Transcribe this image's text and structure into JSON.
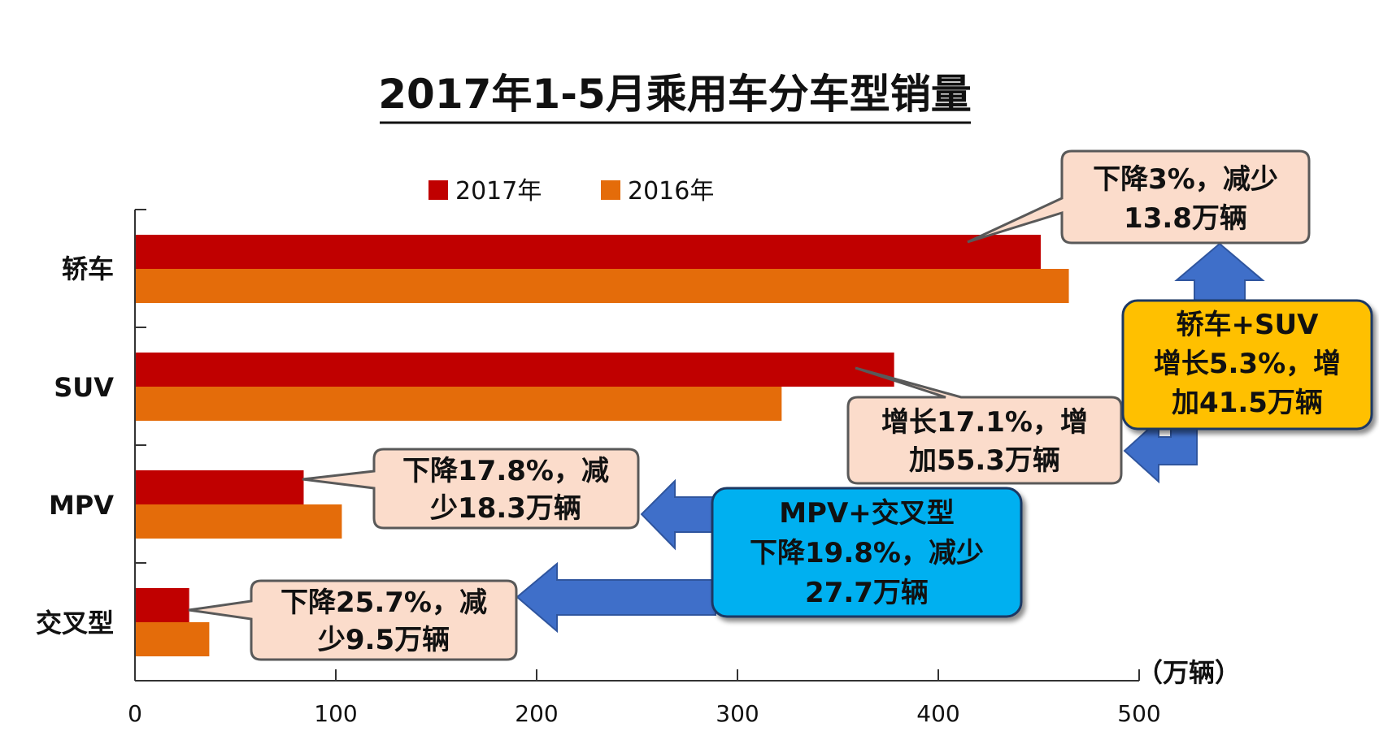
{
  "chart_data": {
    "type": "bar",
    "orientation": "horizontal",
    "title": "2017年1-5月乘用车分车型销量",
    "categories": [
      "轿车",
      "SUV",
      "MPV",
      "交叉型"
    ],
    "series": [
      {
        "name": "2017年",
        "color": "#c00000",
        "values": [
          451,
          378,
          84,
          27
        ]
      },
      {
        "name": "2016年",
        "color": "#e46c0a",
        "values": [
          465,
          322,
          103,
          37
        ]
      }
    ],
    "xlim": [
      0,
      500
    ],
    "xticks": [
      0,
      100,
      200,
      300,
      400,
      500
    ],
    "unit": "（万辆）",
    "legend_position": "top",
    "grid": false,
    "annotations": {
      "sedan": [
        "下降3%，减少",
        "13.8万辆"
      ],
      "suv": [
        "增长17.1%，增",
        "加55.3万辆"
      ],
      "mpv": [
        "下降17.8%，减",
        "少18.3万辆"
      ],
      "crossover": [
        "下降25.7%，减",
        "少9.5万辆"
      ],
      "sedan_suv_total": [
        "轿车+SUV",
        "增长5.3%，增",
        "加41.5万辆"
      ],
      "mpv_crossover_total": [
        "MPV+交叉型",
        "下降19.8%，减少",
        "27.7万辆"
      ]
    }
  }
}
